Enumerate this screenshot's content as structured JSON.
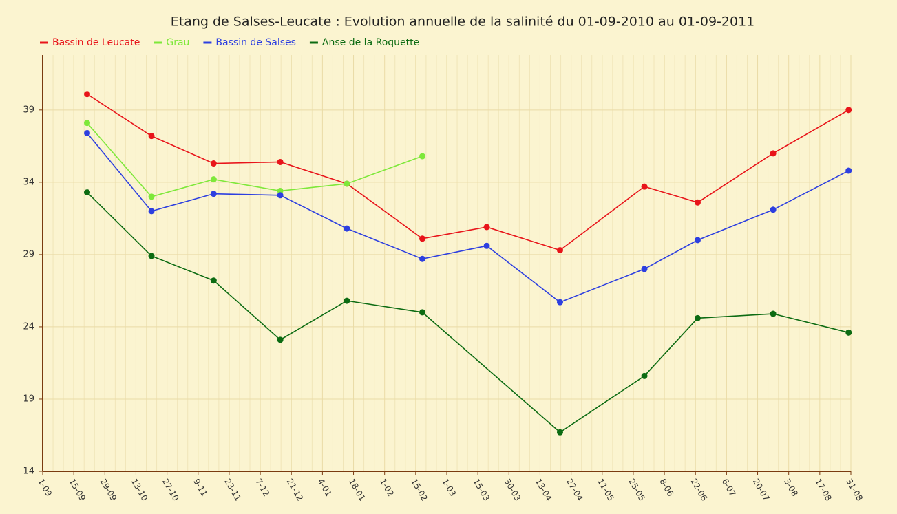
{
  "chart_data": {
    "type": "line",
    "title": "Etang de Salses-Leucate : Evolution annuelle de la salinité du 01-09-2010 au 01-09-2011",
    "x": [
      20,
      49,
      77,
      107,
      137,
      171,
      200,
      233,
      271,
      295,
      329,
      363
    ],
    "series": [
      {
        "name": "Bassin de Leucate",
        "color": "#e8141a",
        "values": [
          40.1,
          37.2,
          35.3,
          35.4,
          33.9,
          30.1,
          30.9,
          29.3,
          33.7,
          32.6,
          36.0,
          39.0
        ]
      },
      {
        "name": "Grau",
        "color": "#7ee83a",
        "values": [
          38.1,
          33.0,
          34.2,
          33.4,
          33.9,
          35.8,
          null,
          null,
          null,
          null,
          null,
          null
        ]
      },
      {
        "name": "Bassin de Salses",
        "color": "#2d3fe0",
        "values": [
          37.4,
          32.0,
          33.2,
          33.1,
          30.8,
          28.7,
          29.6,
          25.7,
          28.0,
          30.0,
          32.1,
          34.8
        ]
      },
      {
        "name": "Anse de la Roquette",
        "color": "#0c6b12",
        "x": [
          20,
          49,
          77,
          107,
          137,
          171,
          233,
          271,
          295,
          329,
          363
        ],
        "values": [
          33.3,
          28.9,
          27.2,
          23.1,
          25.8,
          25.0,
          16.7,
          20.6,
          24.6,
          24.9,
          23.6
        ]
      }
    ],
    "xlim": [
      0,
      364
    ],
    "xticks": [
      {
        "value": 0,
        "label": "1-09"
      },
      {
        "value": 14,
        "label": "15-09"
      },
      {
        "value": 28,
        "label": "29-09"
      },
      {
        "value": 42,
        "label": "13-10"
      },
      {
        "value": 56,
        "label": "27-10"
      },
      {
        "value": 70,
        "label": "9-11"
      },
      {
        "value": 84,
        "label": "23-11"
      },
      {
        "value": 98,
        "label": "7-12"
      },
      {
        "value": 112,
        "label": "21-12"
      },
      {
        "value": 126,
        "label": "4-01"
      },
      {
        "value": 140,
        "label": "18-01"
      },
      {
        "value": 154,
        "label": "1-02"
      },
      {
        "value": 168,
        "label": "15-02"
      },
      {
        "value": 182,
        "label": "1-03"
      },
      {
        "value": 196,
        "label": "15-03"
      },
      {
        "value": 210,
        "label": "30-03"
      },
      {
        "value": 224,
        "label": "13-04"
      },
      {
        "value": 238,
        "label": "27-04"
      },
      {
        "value": 252,
        "label": "11-05"
      },
      {
        "value": 266,
        "label": "25-05"
      },
      {
        "value": 280,
        "label": "8-06"
      },
      {
        "value": 294,
        "label": "22-06"
      },
      {
        "value": 308,
        "label": "6-07"
      },
      {
        "value": 322,
        "label": "20-07"
      },
      {
        "value": 336,
        "label": "3-08"
      },
      {
        "value": 350,
        "label": "17-08"
      },
      {
        "value": 364,
        "label": "31-08"
      }
    ],
    "ylim": [
      14,
      42.8
    ],
    "yticks": [
      14,
      19,
      24,
      29,
      34,
      39
    ],
    "grid": true,
    "legend": "top-left"
  }
}
